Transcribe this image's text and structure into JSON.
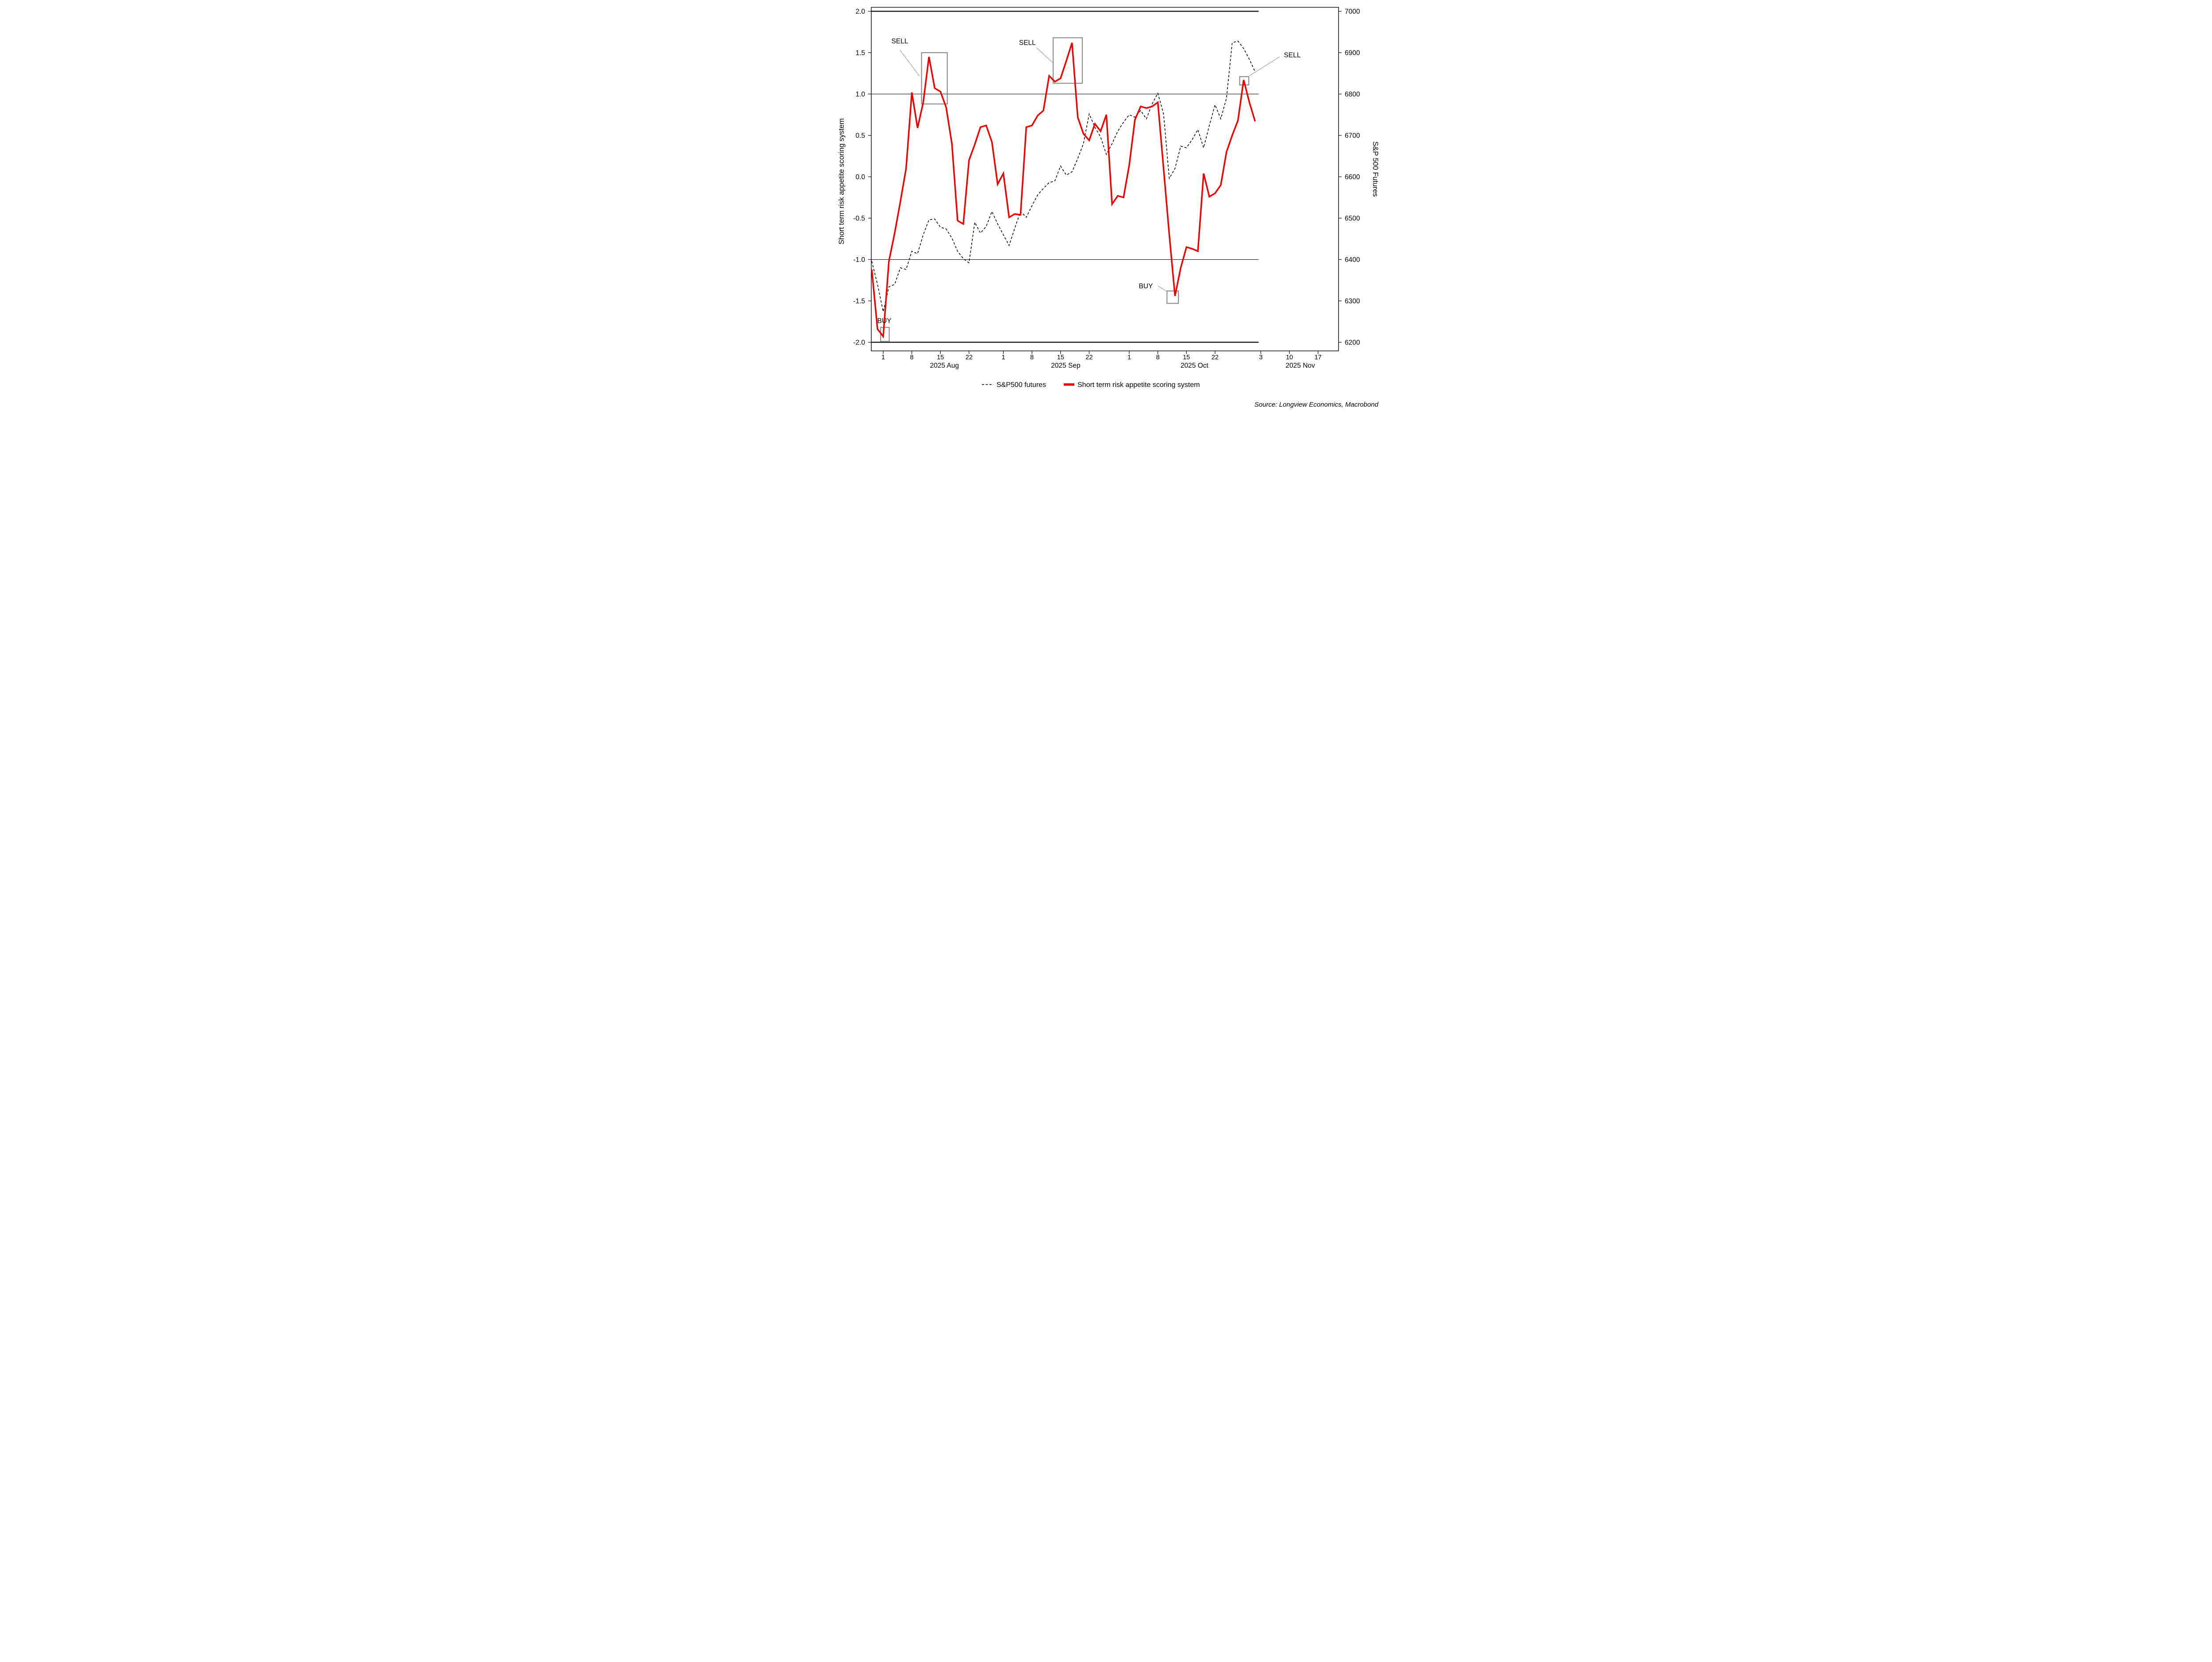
{
  "chart_data": {
    "type": "line",
    "left_axis": {
      "label": "Short term risk appetite scoring system",
      "tick_labels": [
        "2.0",
        "1.5",
        "1.0",
        "0.5",
        "0.0",
        "-0.5",
        "-1.0",
        "-1.5",
        "-2.0"
      ],
      "range": [
        -2.0,
        2.0
      ]
    },
    "right_axis": {
      "label": "S&P 500 Futures",
      "tick_labels": [
        "7000",
        "6900",
        "6800",
        "6700",
        "6600",
        "6500",
        "6400",
        "6300",
        "6200"
      ],
      "range": [
        6200,
        7000
      ],
      "mapping_note": "right value = 6600 + 200 x left score"
    },
    "x_axis": {
      "ticks": [
        {
          "label": "1",
          "date": "2025-08-01"
        },
        {
          "label": "8",
          "date": "2025-08-08"
        },
        {
          "label": "15",
          "date": "2025-08-15"
        },
        {
          "label": "22",
          "date": "2025-08-22"
        },
        {
          "label": "1",
          "date": "2025-09-01"
        },
        {
          "label": "8",
          "date": "2025-09-08"
        },
        {
          "label": "15",
          "date": "2025-09-15"
        },
        {
          "label": "22",
          "date": "2025-09-22"
        },
        {
          "label": "1",
          "date": "2025-10-01"
        },
        {
          "label": "8",
          "date": "2025-10-08"
        },
        {
          "label": "15",
          "date": "2025-10-15"
        },
        {
          "label": "22",
          "date": "2025-10-22"
        },
        {
          "label": "3",
          "date": "2025-11-03"
        },
        {
          "label": "10",
          "date": "2025-11-10"
        },
        {
          "label": "17",
          "date": "2025-11-17"
        }
      ],
      "months": [
        {
          "label": "2025 Aug",
          "center_idx": 10.7
        },
        {
          "label": "2025 Sep",
          "center_idx": 31.9
        },
        {
          "label": "2025 Oct",
          "center_idx": 54.4
        },
        {
          "label": "2025 Nov",
          "center_idx": 72.9
        }
      ]
    },
    "threshold_lines": [
      {
        "value": 2.0,
        "weight": "thick"
      },
      {
        "value": 1.0,
        "weight": "thin"
      },
      {
        "value": -1.0,
        "weight": "thin"
      },
      {
        "value": -2.0,
        "weight": "thick"
      }
    ],
    "dates": [
      "2025-07-30",
      "2025-07-31",
      "2025-08-01",
      "2025-08-04",
      "2025-08-05",
      "2025-08-06",
      "2025-08-07",
      "2025-08-08",
      "2025-08-11",
      "2025-08-12",
      "2025-08-13",
      "2025-08-14",
      "2025-08-15",
      "2025-08-18",
      "2025-08-19",
      "2025-08-20",
      "2025-08-21",
      "2025-08-22",
      "2025-08-25",
      "2025-08-26",
      "2025-08-27",
      "2025-08-28",
      "2025-08-29",
      "2025-09-01",
      "2025-09-02",
      "2025-09-03",
      "2025-09-04",
      "2025-09-05",
      "2025-09-08",
      "2025-09-09",
      "2025-09-10",
      "2025-09-11",
      "2025-09-12",
      "2025-09-15",
      "2025-09-16",
      "2025-09-17",
      "2025-09-18",
      "2025-09-19",
      "2025-09-22",
      "2025-09-23",
      "2025-09-24",
      "2025-09-25",
      "2025-09-26",
      "2025-09-29",
      "2025-09-30",
      "2025-10-01",
      "2025-10-02",
      "2025-10-03",
      "2025-10-06",
      "2025-10-07",
      "2025-10-08",
      "2025-10-09",
      "2025-10-10",
      "2025-10-13",
      "2025-10-14",
      "2025-10-15",
      "2025-10-16",
      "2025-10-17",
      "2025-10-20",
      "2025-10-21",
      "2025-10-22",
      "2025-10-23",
      "2025-10-24",
      "2025-10-27",
      "2025-10-28",
      "2025-10-29",
      "2025-10-30",
      "2025-10-31"
    ],
    "series": [
      {
        "name": "S&P500 futures",
        "axis": "right",
        "style": "dashed",
        "color": "#000000",
        "values": [
          6396,
          6340,
          6274,
          6334,
          6340,
          6380,
          6376,
          6420,
          6414,
          6460,
          6496,
          6498,
          6478,
          6474,
          6452,
          6420,
          6402,
          6392,
          6490,
          6464,
          6480,
          6516,
          6486,
          6460,
          6434,
          6476,
          6516,
          6502,
          6530,
          6556,
          6572,
          6586,
          6590,
          6626,
          6604,
          6612,
          6644,
          6680,
          6752,
          6720,
          6696,
          6654,
          6680,
          6710,
          6732,
          6750,
          6744,
          6760,
          6740,
          6776,
          6802,
          6752,
          6596,
          6620,
          6674,
          6670,
          6690,
          6714,
          6670,
          6724,
          6774,
          6740,
          6790,
          6924,
          6928,
          6910,
          6884,
          6854
        ]
      },
      {
        "name": "Short term risk appetite scoring system",
        "axis": "left",
        "style": "solid",
        "color": "#f20000",
        "values": [
          -1.12,
          -1.84,
          -1.93,
          -1.02,
          -0.68,
          -0.3,
          0.1,
          1.02,
          0.59,
          0.9,
          1.45,
          1.07,
          1.03,
          0.84,
          0.4,
          -0.53,
          -0.57,
          0.2,
          0.39,
          0.6,
          0.62,
          0.42,
          -0.09,
          0.04,
          -0.49,
          -0.45,
          -0.46,
          0.6,
          0.62,
          0.74,
          0.8,
          1.22,
          1.15,
          1.19,
          1.4,
          1.62,
          0.72,
          0.52,
          0.44,
          0.64,
          0.55,
          0.75,
          -0.33,
          -0.23,
          -0.25,
          0.14,
          0.69,
          0.85,
          0.83,
          0.85,
          0.9,
          0.1,
          -0.7,
          -1.44,
          -1.1,
          -0.85,
          -0.87,
          -0.9,
          0.04,
          -0.24,
          -0.2,
          -0.1,
          0.3,
          0.5,
          0.68,
          1.17,
          0.9,
          0.67
        ]
      }
    ],
    "annotations": {
      "labels": [
        {
          "text": "SELL",
          "idx": 2.9,
          "value": 1.64
        },
        {
          "text": "SELL",
          "idx": 25.2,
          "value": 1.62
        },
        {
          "text": "SELL",
          "idx": 71.5,
          "value": 1.47
        },
        {
          "text": "BUY",
          "idx": 0.2,
          "value": -1.74
        },
        {
          "text": "BUY",
          "idx": 45.9,
          "value": -1.32
        }
      ],
      "boxes": [
        {
          "idx1": -0.45,
          "v1": -1.99,
          "idx2": 1.05,
          "v2": -1.82
        },
        {
          "idx1": 6.7,
          "v1": 0.88,
          "idx2": 11.2,
          "v2": 1.5
        },
        {
          "idx1": 29.7,
          "v1": 1.13,
          "idx2": 34.8,
          "v2": 1.68
        },
        {
          "idx1": 49.6,
          "v1": -1.53,
          "idx2": 51.6,
          "v2": -1.38
        },
        {
          "idx1": 62.3,
          "v1": 1.11,
          "idx2": 63.9,
          "v2": 1.21
        }
      ],
      "callouts": [
        {
          "x1": 2.94,
          "v1": 1.53,
          "x2": 6.3,
          "v2": 1.22
        },
        {
          "x1": 26.8,
          "v1": 1.56,
          "x2": 29.6,
          "v2": 1.38
        },
        {
          "x1": 69.3,
          "v1": 1.45,
          "x2": 64.0,
          "v2": 1.22
        },
        {
          "x1": 48.0,
          "v1": -1.32,
          "x2": 49.55,
          "v2": -1.385
        }
      ]
    },
    "signal_colors": {
      "line_red": "#f20000",
      "box_gray": "#8c8c8c",
      "line_black": "#000000"
    }
  },
  "legend": [
    {
      "label": "S&P500 futures",
      "style": "dashed",
      "color": "#000000"
    },
    {
      "label": "Short term risk appetite scoring system",
      "style": "solid",
      "color": "#f20000"
    }
  ],
  "source_note": "Source: Longview Economics, Macrobond"
}
